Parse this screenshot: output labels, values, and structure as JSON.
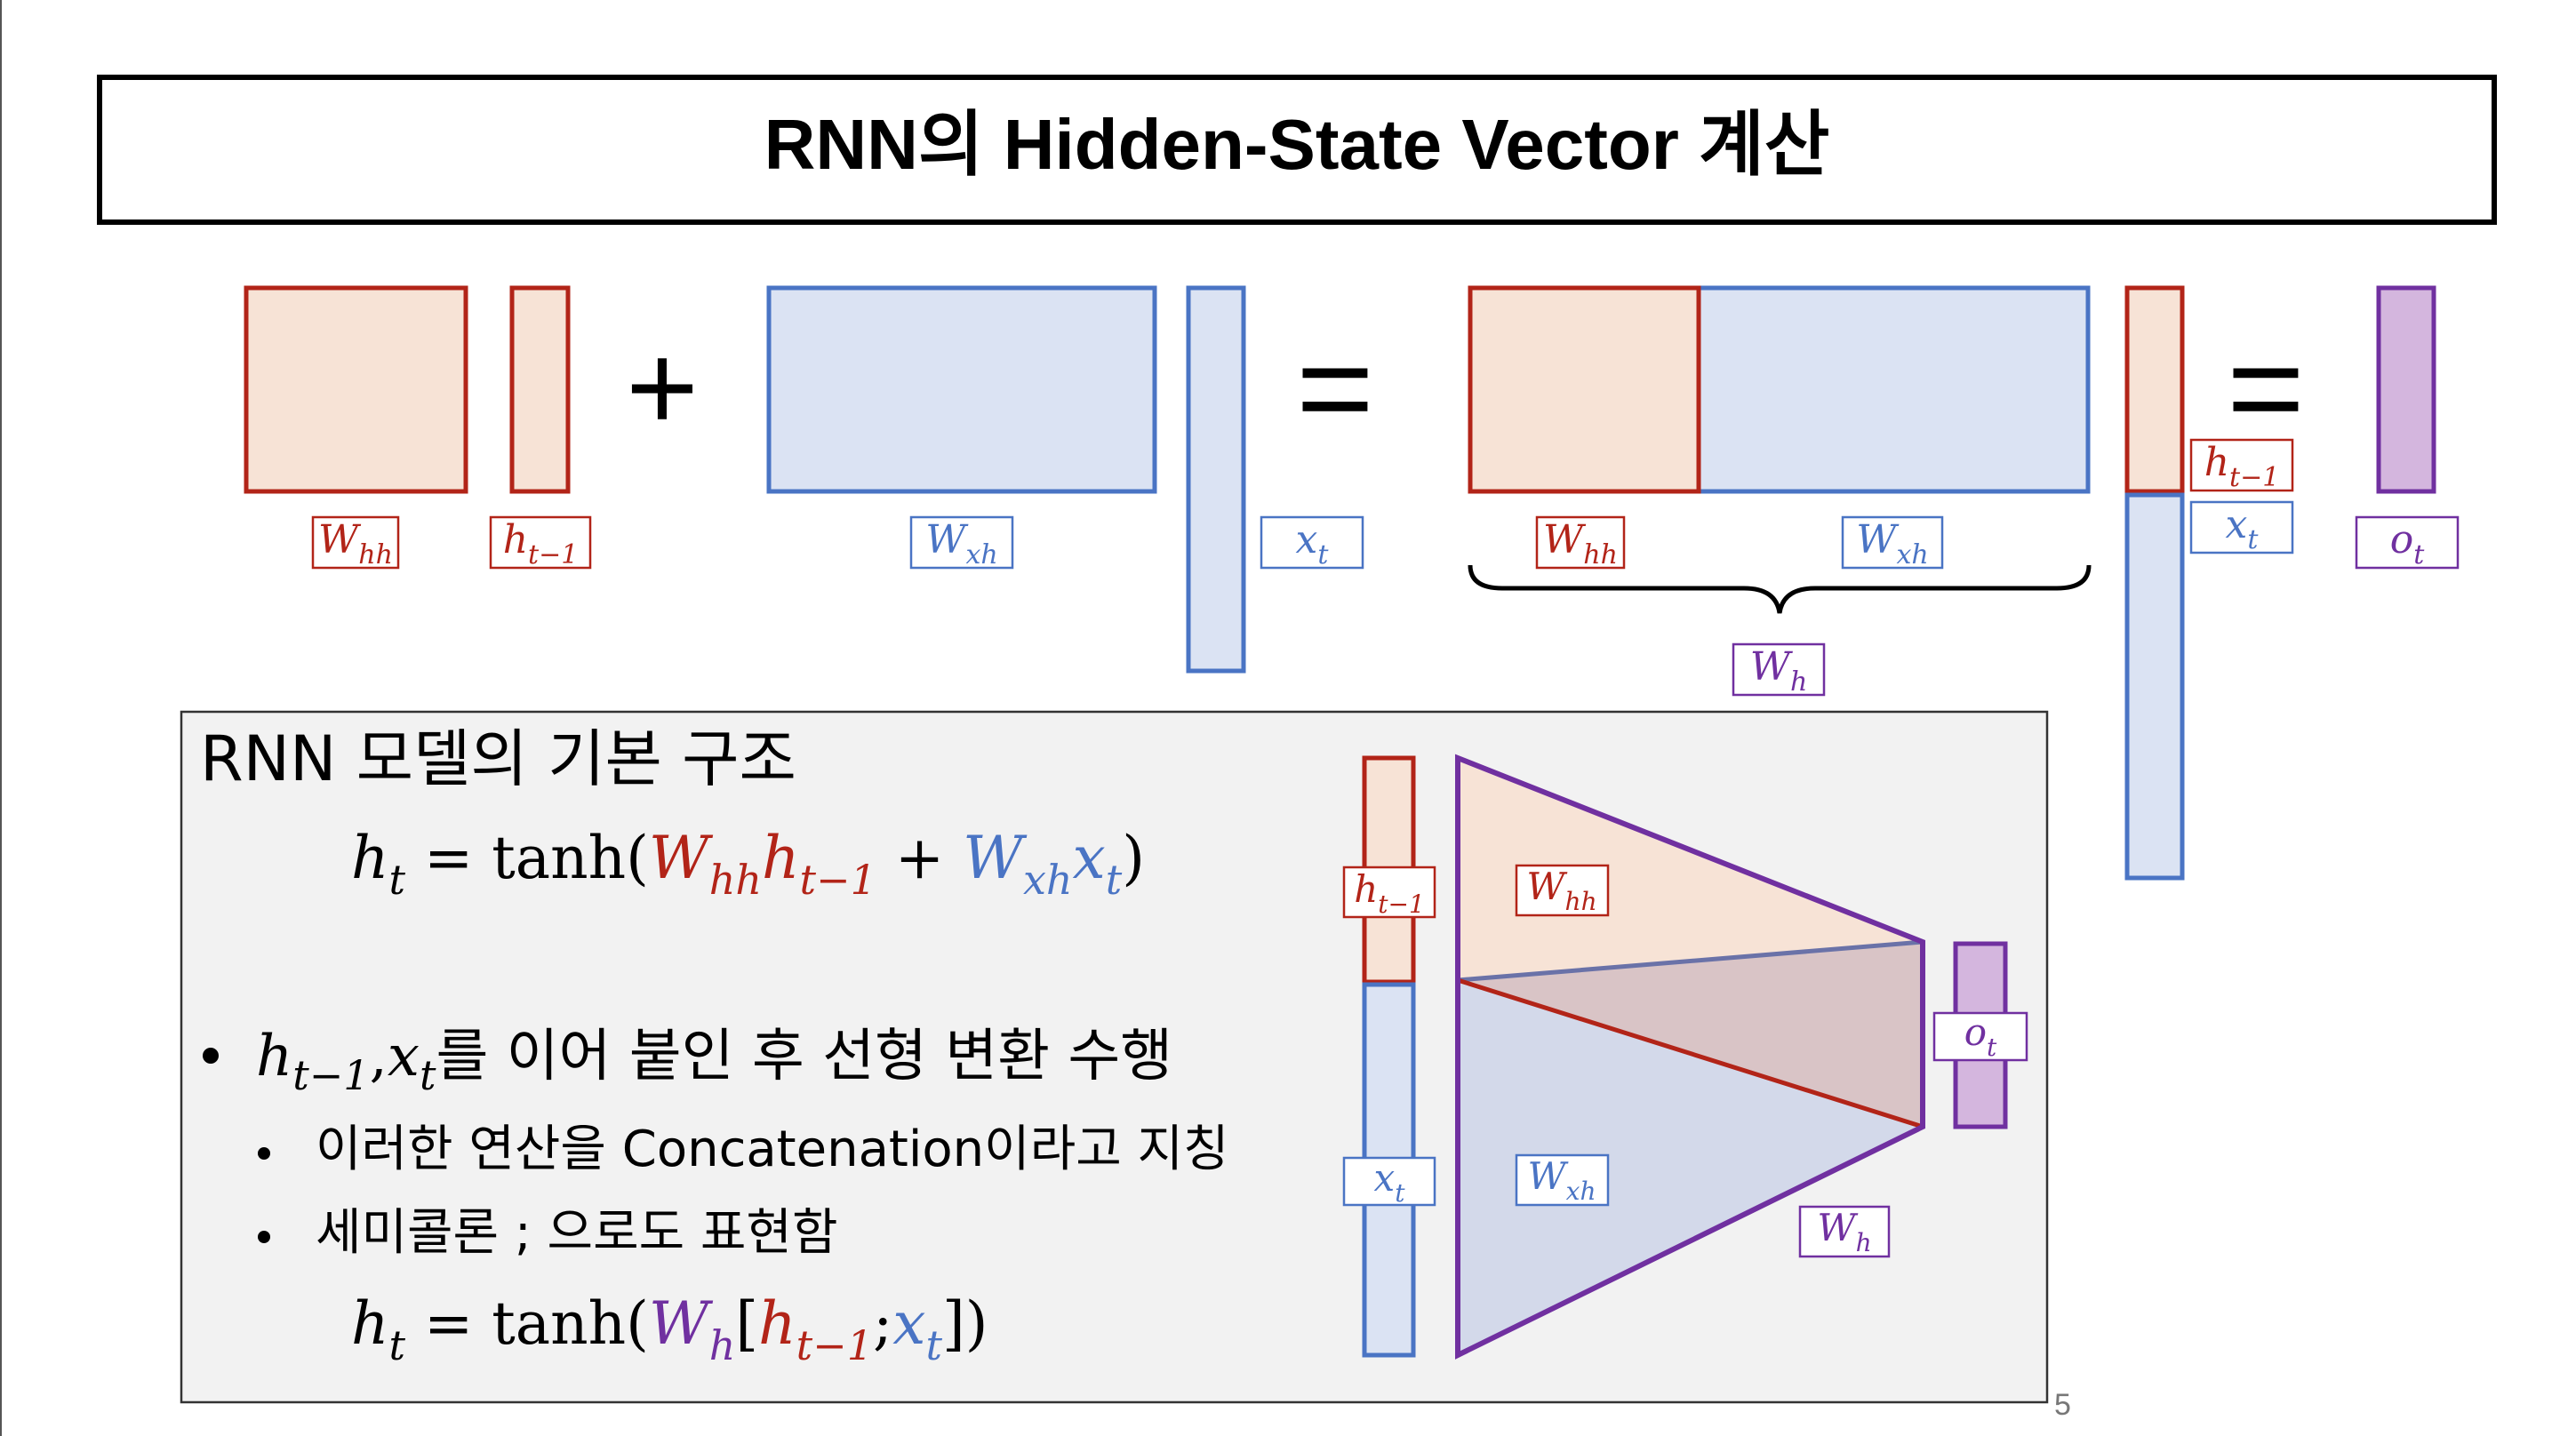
{
  "title": "RNN의 Hidden-State Vector 계산",
  "page_number": "5",
  "top_row": {
    "plus": "+",
    "equals": "=",
    "labels": {
      "whh_1": {
        "base": "W",
        "sub": "hh"
      },
      "ht1_1": {
        "base": "h",
        "sub": "t−1"
      },
      "wxh_1": {
        "base": "W",
        "sub": "xh"
      },
      "xt_1": {
        "base": "x",
        "sub": "t"
      },
      "whh_2": {
        "base": "W",
        "sub": "hh"
      },
      "wxh_2": {
        "base": "W",
        "sub": "xh"
      },
      "wh_brace": {
        "base": "W",
        "sub": "h"
      },
      "ht1_2": {
        "base": "h",
        "sub": "t−1"
      },
      "xt_2": {
        "base": "x",
        "sub": "t"
      },
      "ot_1": {
        "base": "o",
        "sub": "t"
      }
    }
  },
  "box": {
    "heading": "RNN 모델의 기본 구조",
    "eq1": {
      "lhs": "h",
      "lhs_sub": "t",
      "eq": " = tanh(",
      "w1": "W",
      "w1_sub": "hh",
      "h1": "h",
      "h1_sub": "t−1",
      "plus": " + ",
      "w2": "W",
      "w2_sub": "xh",
      "x": "x",
      "x_sub": "t",
      "close": ")"
    },
    "bullets": [
      {
        "pre_h": "h",
        "pre_h_sub": "t−1",
        "comma": ",",
        "pre_x": "x",
        "pre_x_sub": "t",
        "text": "를 이어 붙인 후 선형 변환 수행"
      },
      {
        "text": "이러한 연산을 Concatenation이라고 지칭"
      },
      {
        "text": "세미콜론 ; 으로도 표현함"
      }
    ],
    "eq2": {
      "lhs": "h",
      "lhs_sub": "t",
      "eq": " = tanh(",
      "w": "W",
      "w_sub": "h",
      "open": "[",
      "h": "h",
      "h_sub": "t−1",
      "semi": ";",
      "x": "x",
      "x_sub": "t",
      "close": "])"
    },
    "diagram_labels": {
      "ht1": {
        "base": "h",
        "sub": "t−1"
      },
      "xt": {
        "base": "x",
        "sub": "t"
      },
      "whh": {
        "base": "W",
        "sub": "hh"
      },
      "wxh": {
        "base": "W",
        "sub": "xh"
      },
      "wh": {
        "base": "W",
        "sub": "h"
      },
      "ot": {
        "base": "o",
        "sub": "t"
      }
    }
  },
  "colors": {
    "red": "#b22418",
    "red_fill": "#f7e3d6",
    "blue": "#4a74c4",
    "blue_fill": "#dbe3f3",
    "purple": "#7030a0",
    "purple_fill": "#d4b6de",
    "box_bg": "#f2f2f2"
  }
}
